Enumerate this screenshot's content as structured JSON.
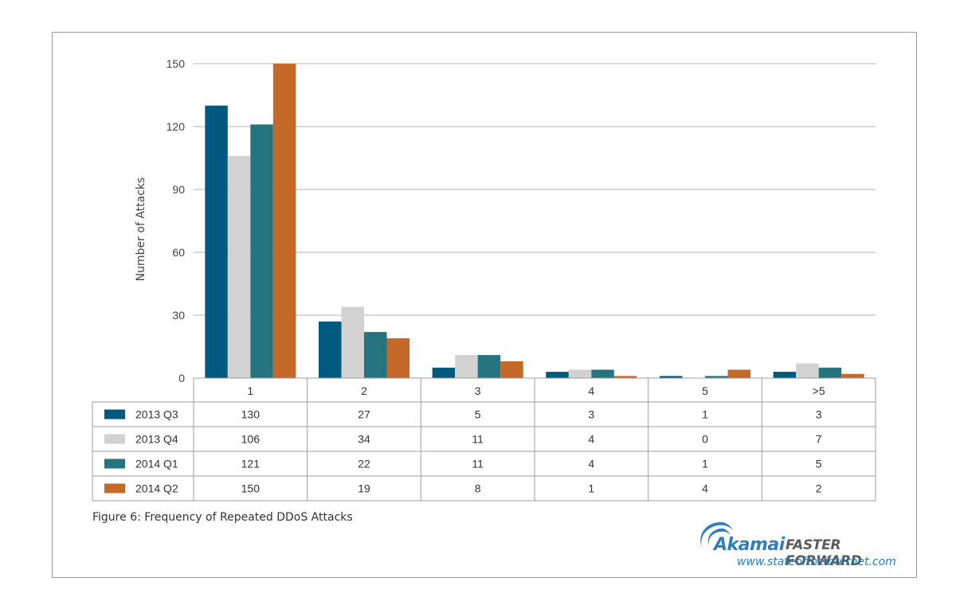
{
  "figure": {
    "caption": "Figure 6: Frequency of Repeated DDoS Attacks"
  },
  "branding": {
    "brand": "Akamai",
    "tagline": "FASTER FORWARD",
    "url": "www.stateoftheinternet.com",
    "colors": {
      "brand_blue": "#2f7fbf",
      "tagline_gray": "#5a5a5a"
    }
  },
  "chart_data": {
    "type": "bar",
    "title": "",
    "xlabel": "",
    "ylabel": "Number of Attacks",
    "categories": [
      "1",
      "2",
      "3",
      "4",
      "5",
      ">5"
    ],
    "ylim": [
      0,
      150
    ],
    "yticks": [
      0,
      30,
      60,
      90,
      120,
      150
    ],
    "grid": true,
    "legend": "table-left",
    "series": [
      {
        "name": "2013 Q3",
        "color": "#005a80",
        "values": [
          130,
          27,
          5,
          3,
          1,
          3
        ]
      },
      {
        "name": "2013 Q4",
        "color": "#d2d2d2",
        "values": [
          106,
          34,
          11,
          4,
          0,
          7
        ]
      },
      {
        "name": "2014 Q1",
        "color": "#247580",
        "values": [
          121,
          22,
          11,
          4,
          1,
          5
        ]
      },
      {
        "name": "2014 Q2",
        "color": "#c5692a",
        "values": [
          150,
          19,
          8,
          1,
          4,
          2
        ]
      }
    ]
  }
}
